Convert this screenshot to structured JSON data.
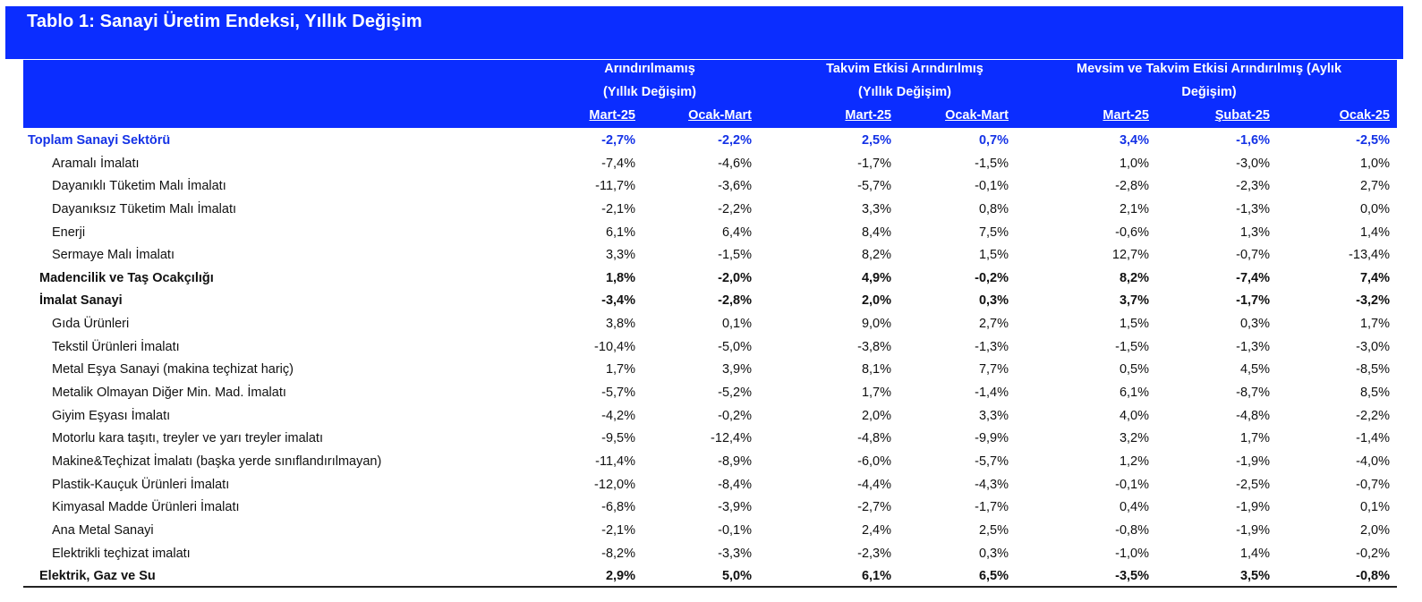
{
  "title": "Tablo 1: Sanayi Üretim Endeksi, Yıllık Değişim",
  "header": {
    "group1_line1": "Arındırılmamış",
    "group1_line2": "(Yıllık Değişim)",
    "group2_line1": "Takvim Etkisi Arındırılmış",
    "group2_line2": "(Yıllık Değişim)",
    "group3_line1": "Mevsim ve Takvim Etkisi Arındırılmış (Aylık",
    "group3_line2": "Değişim)",
    "columns": [
      "Mart-25",
      "Ocak-Mart",
      "Mart-25",
      "Ocak-Mart",
      "Mart-25",
      "Şubat-25",
      "Ocak-25"
    ]
  },
  "rows": [
    {
      "label": "Toplam Sanayi Sektörü",
      "style": "total",
      "values": [
        "-2,7%",
        "-2,2%",
        "2,5%",
        "0,7%",
        "3,4%",
        "-1,6%",
        "-2,5%"
      ]
    },
    {
      "label": "Aramalı İmalatı",
      "style": "sub",
      "values": [
        "-7,4%",
        "-4,6%",
        "-1,7%",
        "-1,5%",
        "1,0%",
        "-3,0%",
        "1,0%"
      ]
    },
    {
      "label": "Dayanıklı Tüketim Malı İmalatı",
      "style": "sub",
      "values": [
        "-11,7%",
        "-3,6%",
        "-5,7%",
        "-0,1%",
        "-2,8%",
        "-2,3%",
        "2,7%"
      ]
    },
    {
      "label": "Dayanıksız Tüketim Malı İmalatı",
      "style": "sub",
      "values": [
        "-2,1%",
        "-2,2%",
        "3,3%",
        "0,8%",
        "2,1%",
        "-1,3%",
        "0,0%"
      ]
    },
    {
      "label": "Enerji",
      "style": "sub",
      "values": [
        "6,1%",
        "6,4%",
        "8,4%",
        "7,5%",
        "-0,6%",
        "1,3%",
        "1,4%"
      ]
    },
    {
      "label": "Sermaye Malı İmalatı",
      "style": "sub",
      "values": [
        "3,3%",
        "-1,5%",
        "8,2%",
        "1,5%",
        "12,7%",
        "-0,7%",
        "-13,4%"
      ]
    },
    {
      "label": "Madencilik ve Taş Ocakçılığı",
      "style": "section",
      "values": [
        "1,8%",
        "-2,0%",
        "4,9%",
        "-0,2%",
        "8,2%",
        "-7,4%",
        "7,4%"
      ]
    },
    {
      "label": "İmalat Sanayi",
      "style": "section",
      "values": [
        "-3,4%",
        "-2,8%",
        "2,0%",
        "0,3%",
        "3,7%",
        "-1,7%",
        "-3,2%"
      ]
    },
    {
      "label": "Gıda Ürünleri",
      "style": "sub",
      "values": [
        "3,8%",
        "0,1%",
        "9,0%",
        "2,7%",
        "1,5%",
        "0,3%",
        "1,7%"
      ]
    },
    {
      "label": "Tekstil Ürünleri İmalatı",
      "style": "sub",
      "values": [
        "-10,4%",
        "-5,0%",
        "-3,8%",
        "-1,3%",
        "-1,5%",
        "-1,3%",
        "-3,0%"
      ]
    },
    {
      "label": "Metal Eşya Sanayi (makina teçhizat hariç)",
      "style": "sub",
      "values": [
        "1,7%",
        "3,9%",
        "8,1%",
        "7,7%",
        "0,5%",
        "4,5%",
        "-8,5%"
      ]
    },
    {
      "label": "Metalik Olmayan Diğer Min. Mad. İmalatı",
      "style": "sub",
      "values": [
        "-5,7%",
        "-5,2%",
        "1,7%",
        "-1,4%",
        "6,1%",
        "-8,7%",
        "8,5%"
      ]
    },
    {
      "label": "Giyim Eşyası İmalatı",
      "style": "sub",
      "values": [
        "-4,2%",
        "-0,2%",
        "2,0%",
        "3,3%",
        "4,0%",
        "-4,8%",
        "-2,2%"
      ]
    },
    {
      "label": "Motorlu kara taşıtı, treyler ve yarı treyler imalatı",
      "style": "sub",
      "values": [
        "-9,5%",
        "-12,4%",
        "-4,8%",
        "-9,9%",
        "3,2%",
        "1,7%",
        "-1,4%"
      ]
    },
    {
      "label": "Makine&Teçhizat İmalatı (başka yerde sınıflandırılmayan)",
      "style": "sub",
      "values": [
        "-11,4%",
        "-8,9%",
        "-6,0%",
        "-5,7%",
        "1,2%",
        "-1,9%",
        "-4,0%"
      ]
    },
    {
      "label": "Plastik-Kauçuk Ürünleri İmalatı",
      "style": "sub",
      "values": [
        "-12,0%",
        "-8,4%",
        "-4,4%",
        "-4,3%",
        "-0,1%",
        "-2,5%",
        "-0,7%"
      ]
    },
    {
      "label": "Kimyasal Madde Ürünleri İmalatı",
      "style": "sub",
      "values": [
        "-6,8%",
        "-3,9%",
        "-2,7%",
        "-1,7%",
        "0,4%",
        "-1,9%",
        "0,1%"
      ]
    },
    {
      "label": "Ana Metal Sanayi",
      "style": "sub",
      "values": [
        "-2,1%",
        "-0,1%",
        "2,4%",
        "2,5%",
        "-0,8%",
        "-1,9%",
        "2,0%"
      ]
    },
    {
      "label": "Elektrikli teçhizat imalatı",
      "style": "sub",
      "values": [
        "-8,2%",
        "-3,3%",
        "-2,3%",
        "0,3%",
        "-1,0%",
        "1,4%",
        "-0,2%"
      ]
    },
    {
      "label": "Elektrik, Gaz ve Su",
      "style": "section",
      "values": [
        "2,9%",
        "5,0%",
        "6,1%",
        "6,5%",
        "-3,5%",
        "3,5%",
        "-0,8%"
      ]
    }
  ]
}
